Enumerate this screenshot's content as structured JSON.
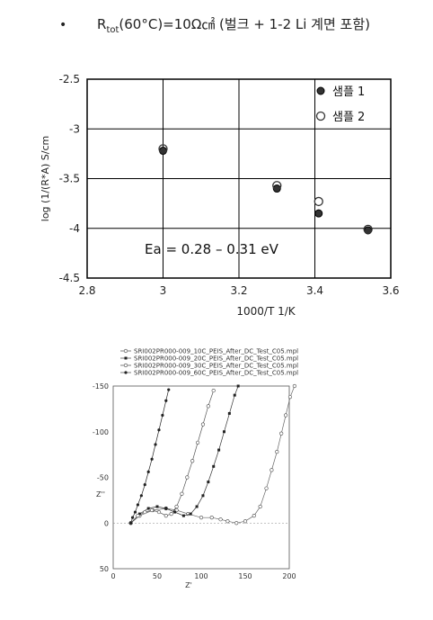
{
  "header": {
    "bullet": "•",
    "title_r": "R",
    "title_sub": "tot",
    "title_rest": "(60°C)=10Ω㎠ (벌크 + 1-2 Li 계면 포함)"
  },
  "chart_data": [
    {
      "type": "scatter",
      "xlabel": "1000/T 1/K",
      "ylabel": "log (1/(R*A) S/cm",
      "xlim": [
        2.8,
        3.6
      ],
      "ylim": [
        -4.5,
        -2.5
      ],
      "x_ticks": [
        "2.8",
        "3",
        "3.2",
        "3.4",
        "3.6"
      ],
      "y_ticks": [
        "-2.5",
        "-3",
        "-3.5",
        "-4",
        "-4.5"
      ],
      "grid": true,
      "legend_position": "top-right",
      "series": [
        {
          "name": "샘플 1",
          "marker": "filled",
          "points": [
            [
              3.0,
              -3.22
            ],
            [
              3.3,
              -3.6
            ],
            [
              3.41,
              -3.85
            ],
            [
              3.54,
              -4.02
            ]
          ]
        },
        {
          "name": "샘플 2",
          "marker": "open",
          "points": [
            [
              3.0,
              -3.2
            ],
            [
              3.3,
              -3.57
            ],
            [
              3.41,
              -3.73
            ],
            [
              3.54,
              -4.01
            ]
          ]
        }
      ],
      "annotation": "Ea = 0.28 – 0.31 eV"
    },
    {
      "type": "scatter",
      "xlabel": "Z'",
      "ylabel": "Z''",
      "xlim": [
        0,
        200
      ],
      "ylim": [
        50,
        -150
      ],
      "x_ticks": [
        "0",
        "50",
        "100",
        "150",
        "200"
      ],
      "y_ticks": [
        "-150",
        "-100",
        "-50",
        "0",
        "50"
      ],
      "legend_position": "top-left",
      "series": [
        {
          "name": "SRI002PR000-009_10C_PEIS_After_DC_Test_C05.mpl",
          "marker": "open",
          "points": [
            [
              20,
              0
            ],
            [
              30,
              -8
            ],
            [
              45,
              -14
            ],
            [
              60,
              -16
            ],
            [
              72,
              -14
            ],
            [
              85,
              -10
            ],
            [
              100,
              -6
            ],
            [
              112,
              -6
            ],
            [
              122,
              -4
            ],
            [
              130,
              -2
            ],
            [
              140,
              0
            ],
            [
              150,
              -2
            ],
            [
              160,
              -8
            ],
            [
              167,
              -18
            ],
            [
              174,
              -38
            ],
            [
              180,
              -58
            ],
            [
              186,
              -78
            ],
            [
              191,
              -98
            ],
            [
              196,
              -118
            ],
            [
              201,
              -138
            ],
            [
              206,
              -150
            ]
          ]
        },
        {
          "name": "SRI002PR000-009_20C_PEIS_After_DC_Test_C05.mpl",
          "marker": "filled-square",
          "points": [
            [
              20,
              0
            ],
            [
              30,
              -10
            ],
            [
              40,
              -16
            ],
            [
              50,
              -18
            ],
            [
              60,
              -16
            ],
            [
              70,
              -12
            ],
            [
              80,
              -8
            ],
            [
              88,
              -10
            ],
            [
              95,
              -18
            ],
            [
              102,
              -30
            ],
            [
              108,
              -45
            ],
            [
              114,
              -62
            ],
            [
              120,
              -80
            ],
            [
              126,
              -100
            ],
            [
              132,
              -120
            ],
            [
              138,
              -140
            ],
            [
              142,
              -150
            ]
          ]
        },
        {
          "name": "SRI002PR000-009_30C_PEIS_After_DC_Test_C05.mpl",
          "marker": "open-circle",
          "points": [
            [
              20,
              0
            ],
            [
              28,
              -8
            ],
            [
              36,
              -12
            ],
            [
              44,
              -14
            ],
            [
              52,
              -12
            ],
            [
              60,
              -8
            ],
            [
              66,
              -10
            ],
            [
              72,
              -18
            ],
            [
              78,
              -32
            ],
            [
              84,
              -50
            ],
            [
              90,
              -68
            ],
            [
              96,
              -88
            ],
            [
              102,
              -108
            ],
            [
              108,
              -128
            ],
            [
              114,
              -145
            ]
          ]
        },
        {
          "name": "SRI002PR000-009_60C_PEIS_After_DC_Test_C05.mpl",
          "marker": "filled-circle",
          "points": [
            [
              20,
              0
            ],
            [
              22,
              -6
            ],
            [
              25,
              -12
            ],
            [
              28,
              -20
            ],
            [
              32,
              -30
            ],
            [
              36,
              -42
            ],
            [
              40,
              -56
            ],
            [
              44,
              -70
            ],
            [
              48,
              -86
            ],
            [
              52,
              -102
            ],
            [
              56,
              -118
            ],
            [
              60,
              -134
            ],
            [
              63,
              -146
            ]
          ]
        }
      ]
    }
  ]
}
